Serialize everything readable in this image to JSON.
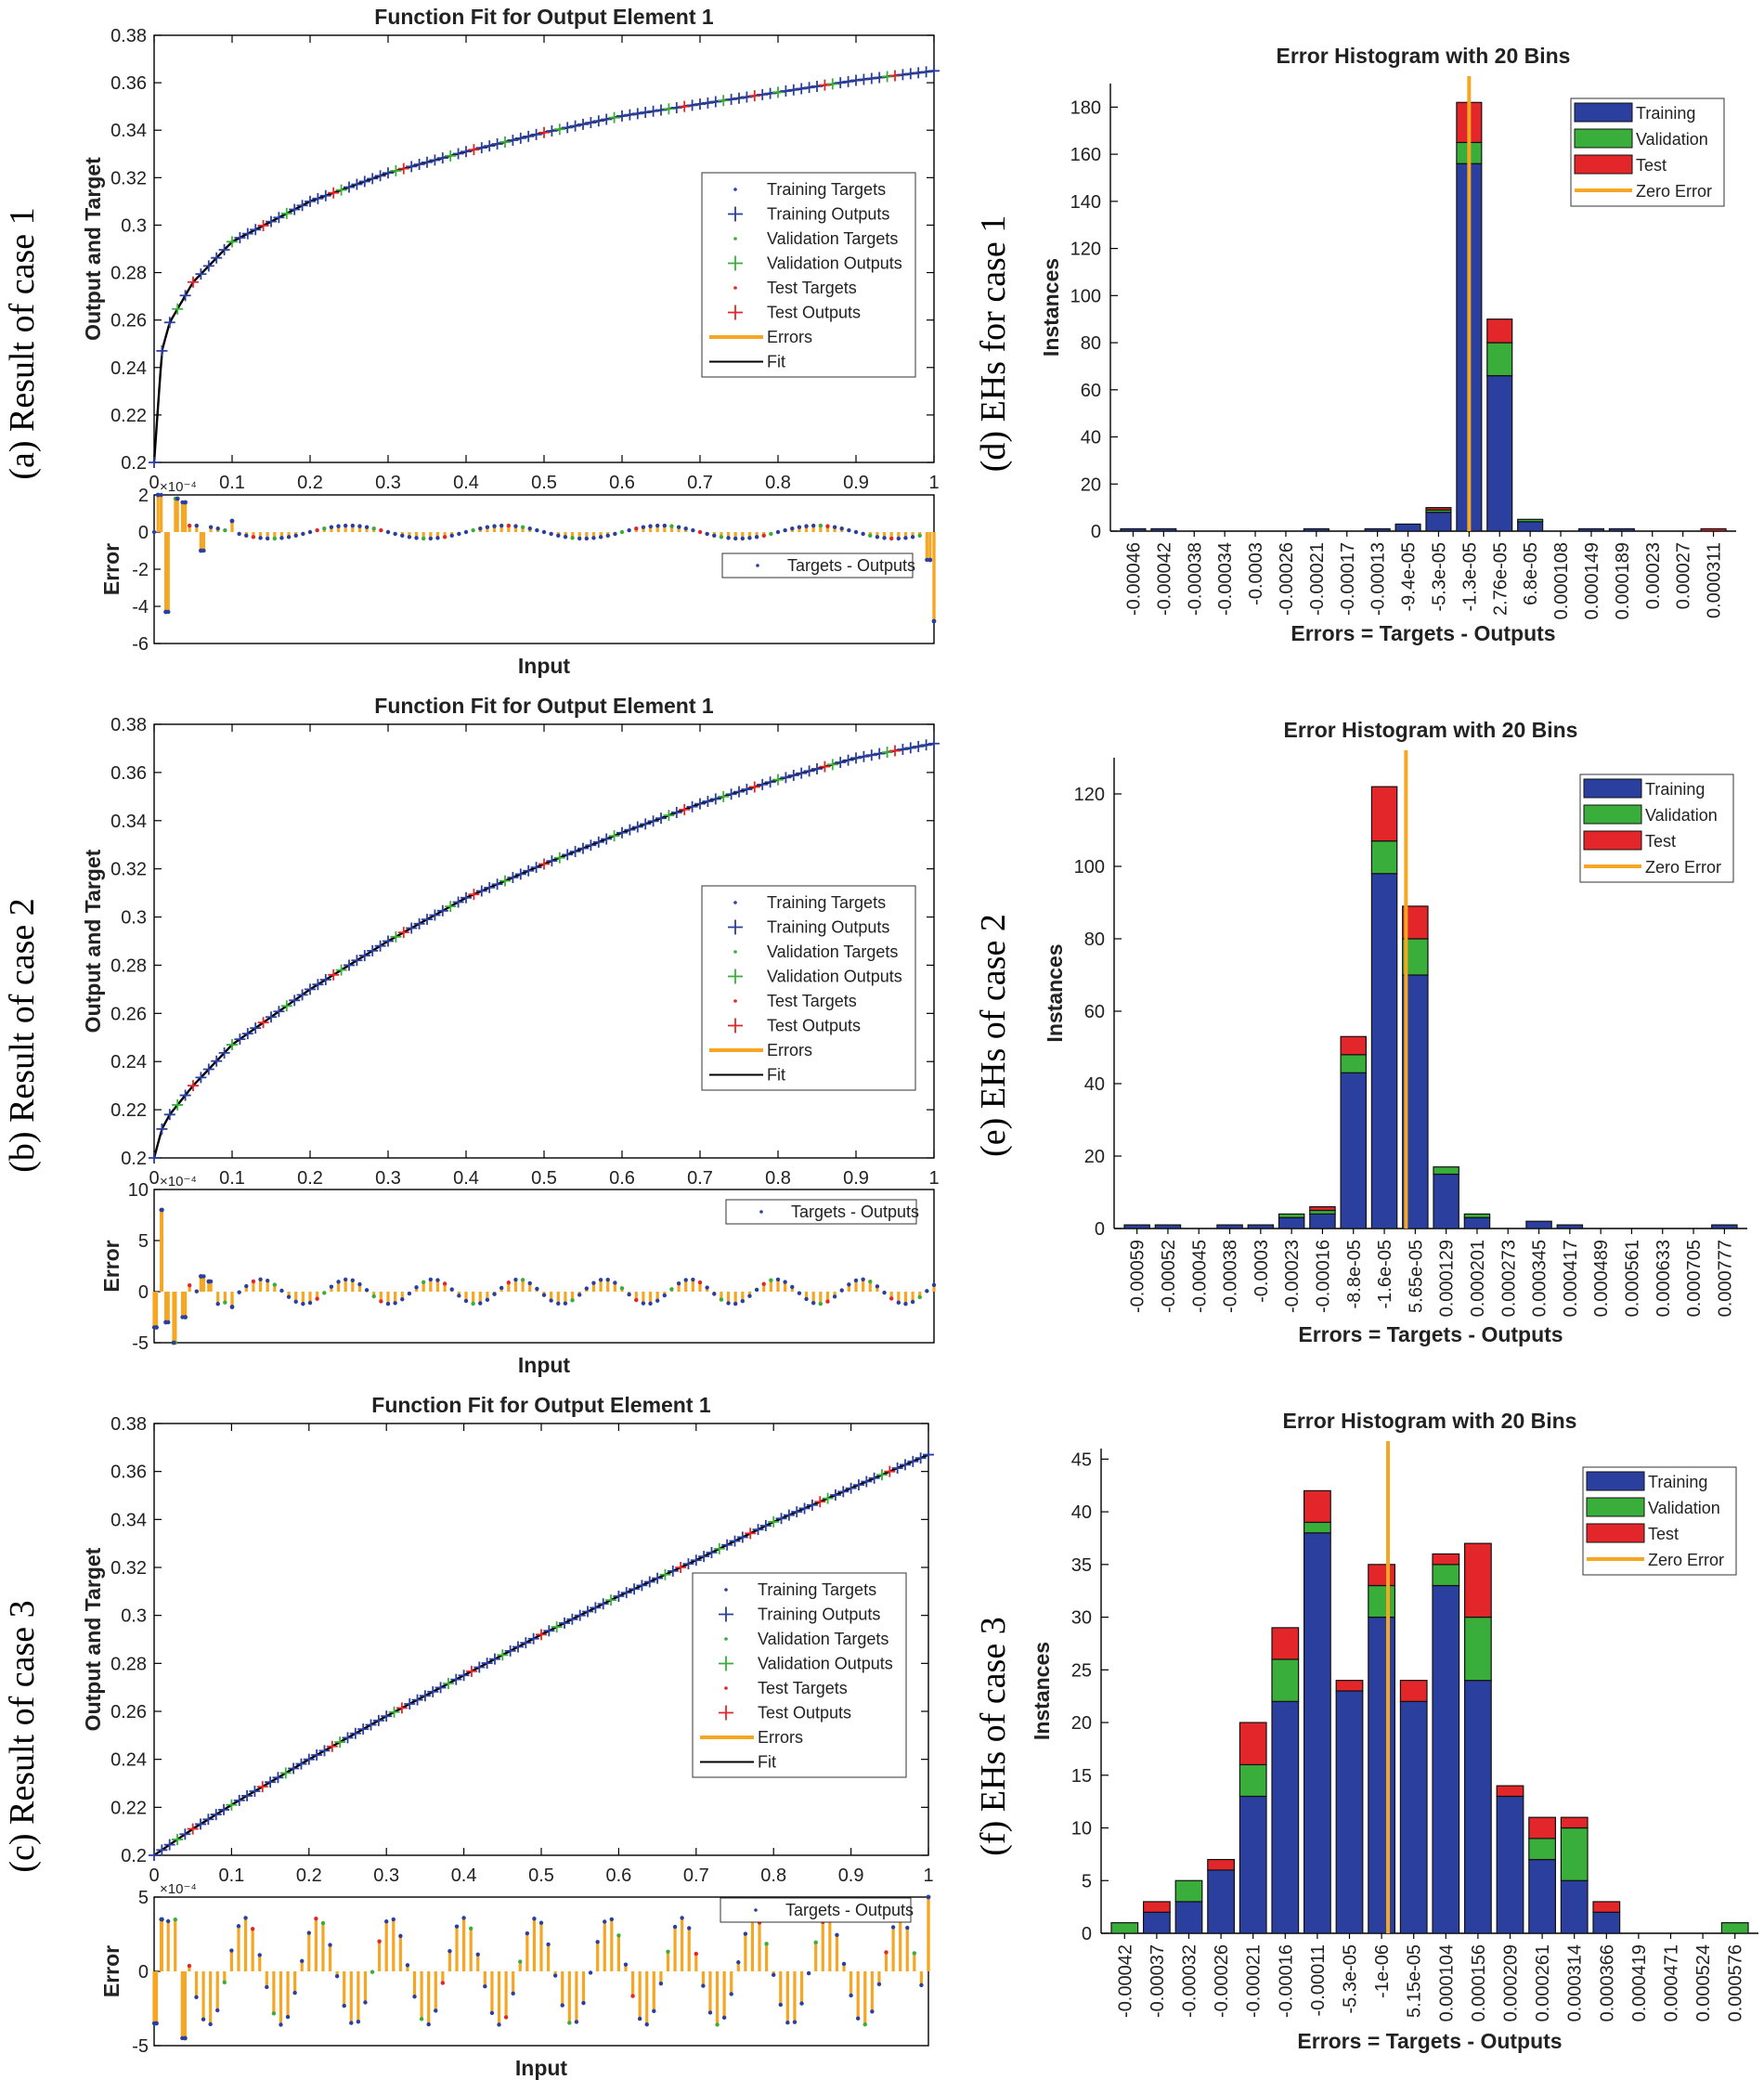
{
  "colors": {
    "training": "#2b3f9e",
    "validation": "#3aae3a",
    "test": "#e3262a",
    "zero_error": "#f5a623",
    "errors": "#f5a623",
    "fit": "#000000"
  },
  "fit_legend": [
    "Training Targets",
    "Training Outputs",
    "Validation Targets",
    "Validation Outputs",
    "Test Targets",
    "Test Outputs",
    "Errors",
    "Fit"
  ],
  "error_legend": "Targets - Outputs",
  "hist_legend": [
    "Training",
    "Validation",
    "Test",
    "Zero Error"
  ],
  "chart_data": [
    {
      "type": "line",
      "caption": "(a) Result of case 1",
      "title": "Function Fit for Output Element 1",
      "xlabel": "Input",
      "ylabel": "Output and Target",
      "ylim": [
        0.2,
        0.38
      ],
      "xlim": [
        0,
        1
      ],
      "yticks": [
        "0.2",
        "0.22",
        "0.24",
        "0.26",
        "0.28",
        "0.3",
        "0.32",
        "0.34",
        "0.36",
        "0.38"
      ],
      "xticks": [
        "0",
        "0.1",
        "0.2",
        "0.3",
        "0.4",
        "0.5",
        "0.6",
        "0.7",
        "0.8",
        "0.9",
        "1"
      ],
      "fit_curve": {
        "x": [
          0,
          0.01,
          0.02,
          0.05,
          0.1,
          0.2,
          0.3,
          0.4,
          0.5,
          0.6,
          0.7,
          0.8,
          0.9,
          1.0
        ],
        "y": [
          0.2,
          0.247,
          0.259,
          0.276,
          0.293,
          0.31,
          0.322,
          0.331,
          0.339,
          0.346,
          0.351,
          0.356,
          0.361,
          0.365
        ]
      },
      "error_plot": {
        "ylabel": "Error",
        "exponent": "×10⁻⁴",
        "ylim": [
          -6,
          2
        ],
        "yticks": [
          "-6",
          "-4",
          "-2",
          "0",
          "2"
        ],
        "errors_pattern": "spike -4.3 near x=0.02, +2 near 0.01-0.04, small oscillations, -4.8 at x=1",
        "spikes": [
          [
            0.005,
            2.0
          ],
          [
            0.015,
            -4.3
          ],
          [
            0.03,
            1.8
          ],
          [
            0.04,
            1.6
          ],
          [
            0.06,
            -1.0
          ],
          [
            0.1,
            0.6
          ],
          [
            0.995,
            -1.5
          ],
          [
            1.0,
            -4.8
          ]
        ]
      }
    },
    {
      "type": "bar",
      "caption": "(d) EHs for case 1",
      "title": "Error Histogram with 20 Bins",
      "xlabel": "Errors = Targets - Outputs",
      "ylabel": "Instances",
      "ylim": [
        0,
        190
      ],
      "yticks": [
        "0",
        "20",
        "40",
        "60",
        "80",
        "100",
        "120",
        "140",
        "160",
        "180"
      ],
      "categories": [
        "-0.00046",
        "-0.00042",
        "-0.00038",
        "-0.00034",
        "-0.0003",
        "-0.00026",
        "-0.00021",
        "-0.00017",
        "-0.00013",
        "-9.4e-05",
        "-5.3e-05",
        "-1.3e-05",
        "2.76e-05",
        "6.8e-05",
        "0.000108",
        "0.000149",
        "0.000189",
        "0.00023",
        "0.00027",
        "0.000311"
      ],
      "series": [
        {
          "name": "Training",
          "values": [
            1,
            1,
            0,
            0,
            0,
            0,
            1,
            0,
            1,
            3,
            8,
            156,
            66,
            4,
            0,
            1,
            1,
            0,
            0,
            0
          ]
        },
        {
          "name": "Validation",
          "values": [
            0,
            0,
            0,
            0,
            0,
            0,
            0,
            0,
            0,
            0,
            1,
            9,
            14,
            1,
            0,
            0,
            0,
            0,
            0,
            0
          ]
        },
        {
          "name": "Test",
          "values": [
            0,
            0,
            0,
            0,
            0,
            0,
            0,
            0,
            0,
            0,
            1,
            17,
            10,
            0,
            0,
            0,
            0,
            0,
            0,
            1
          ]
        }
      ],
      "zero_error_bin": 11.0
    },
    {
      "type": "line",
      "caption": "(b) Result of case 2",
      "title": "Function Fit for Output Element 1",
      "xlabel": "Input",
      "ylabel": "Output and Target",
      "ylim": [
        0.2,
        0.38
      ],
      "xlim": [
        0,
        1
      ],
      "yticks": [
        "0.2",
        "0.22",
        "0.24",
        "0.26",
        "0.28",
        "0.3",
        "0.32",
        "0.34",
        "0.36",
        "0.38"
      ],
      "xticks": [
        "0",
        "0.1",
        "0.2",
        "0.3",
        "0.4",
        "0.5",
        "0.6",
        "0.7",
        "0.8",
        "0.9",
        "1"
      ],
      "fit_curve": {
        "x": [
          0,
          0.01,
          0.02,
          0.05,
          0.1,
          0.2,
          0.3,
          0.4,
          0.5,
          0.6,
          0.7,
          0.8,
          0.9,
          1.0
        ],
        "y": [
          0.2,
          0.212,
          0.218,
          0.23,
          0.247,
          0.27,
          0.29,
          0.308,
          0.322,
          0.335,
          0.347,
          0.357,
          0.366,
          0.372
        ]
      },
      "error_plot": {
        "ylabel": "Error",
        "exponent": "×10⁻⁴",
        "ylim": [
          -5,
          10
        ],
        "yticks": [
          "-5",
          "0",
          "5",
          "10"
        ],
        "spikes": [
          [
            0.003,
            -3.5
          ],
          [
            0.01,
            8.0
          ],
          [
            0.015,
            -3.0
          ],
          [
            0.025,
            -5.0
          ],
          [
            0.04,
            -2.5
          ],
          [
            0.06,
            1.5
          ],
          [
            0.07,
            1.0
          ],
          [
            0.1,
            -1.5
          ]
        ]
      }
    },
    {
      "type": "bar",
      "caption": "(e) EHs of case 2",
      "title": "Error Histogram with 20 Bins",
      "xlabel": "Errors = Targets - Outputs",
      "ylabel": "Instances",
      "ylim": [
        0,
        130
      ],
      "yticks": [
        "0",
        "20",
        "40",
        "60",
        "80",
        "100",
        "120"
      ],
      "categories": [
        "-0.00059",
        "-0.00052",
        "-0.00045",
        "-0.00038",
        "-0.0003",
        "-0.00023",
        "-0.00016",
        "-8.8e-05",
        "-1.6e-05",
        "5.65e-05",
        "0.000129",
        "0.000201",
        "0.000273",
        "0.000345",
        "0.000417",
        "0.000489",
        "0.000561",
        "0.000633",
        "0.000705",
        "0.000777"
      ],
      "series": [
        {
          "name": "Training",
          "values": [
            1,
            1,
            0,
            1,
            1,
            3,
            4,
            43,
            98,
            70,
            15,
            3,
            0,
            2,
            1,
            0,
            0,
            0,
            0,
            1
          ]
        },
        {
          "name": "Validation",
          "values": [
            0,
            0,
            0,
            0,
            0,
            1,
            1,
            5,
            9,
            10,
            2,
            1,
            0,
            0,
            0,
            0,
            0,
            0,
            0,
            0
          ]
        },
        {
          "name": "Test",
          "values": [
            0,
            0,
            0,
            0,
            0,
            0,
            1,
            5,
            15,
            9,
            0,
            0,
            0,
            0,
            0,
            0,
            0,
            0,
            0,
            0
          ]
        }
      ],
      "zero_error_bin": 8.7
    },
    {
      "type": "line",
      "caption": "(c) Result of case 3",
      "title": "Function Fit for Output Element 1",
      "xlabel": "Input",
      "ylabel": "Output and Target",
      "ylim": [
        0.2,
        0.38
      ],
      "xlim": [
        0,
        1
      ],
      "yticks": [
        "0.2",
        "0.22",
        "0.24",
        "0.26",
        "0.28",
        "0.3",
        "0.32",
        "0.34",
        "0.36",
        "0.38"
      ],
      "xticks": [
        "0",
        "0.1",
        "0.2",
        "0.3",
        "0.4",
        "0.5",
        "0.6",
        "0.7",
        "0.8",
        "0.9",
        "1"
      ],
      "fit_curve": {
        "x": [
          0,
          0.05,
          0.1,
          0.2,
          0.3,
          0.4,
          0.5,
          0.6,
          0.7,
          0.8,
          0.9,
          1.0
        ],
        "y": [
          0.2,
          0.211,
          0.221,
          0.24,
          0.258,
          0.275,
          0.292,
          0.308,
          0.323,
          0.339,
          0.353,
          0.367
        ]
      },
      "error_plot": {
        "ylabel": "Error",
        "exponent": "×10⁻⁴",
        "ylim": [
          -5,
          5
        ],
        "yticks": [
          "-5",
          "0",
          "5"
        ],
        "spikes": [
          [
            0.003,
            -3.5
          ],
          [
            0.01,
            3.5
          ],
          [
            0.04,
            -4.5
          ],
          [
            1.0,
            5.0
          ]
        ]
      }
    },
    {
      "type": "bar",
      "caption": "(f) EHs of case 3",
      "title": "Error Histogram with 20 Bins",
      "xlabel": "Errors = Targets - Outputs",
      "ylabel": "Instances",
      "ylim": [
        0,
        46
      ],
      "yticks": [
        "0",
        "5",
        "10",
        "15",
        "20",
        "25",
        "30",
        "35",
        "40",
        "45"
      ],
      "categories": [
        "-0.00042",
        "-0.00037",
        "-0.00032",
        "-0.00026",
        "-0.00021",
        "-0.00016",
        "-0.00011",
        "-5.3e-05",
        "-1e-06",
        "5.15e-05",
        "0.000104",
        "0.000156",
        "0.000209",
        "0.000261",
        "0.000314",
        "0.000366",
        "0.000419",
        "0.000471",
        "0.000524",
        "0.000576"
      ],
      "series": [
        {
          "name": "Training",
          "values": [
            0,
            2,
            3,
            6,
            13,
            22,
            38,
            23,
            30,
            22,
            33,
            24,
            13,
            7,
            5,
            2,
            0,
            0,
            0,
            0
          ]
        },
        {
          "name": "Validation",
          "values": [
            1,
            0,
            2,
            0,
            3,
            4,
            1,
            0,
            3,
            0,
            2,
            6,
            0,
            2,
            5,
            0,
            0,
            0,
            0,
            1
          ]
        },
        {
          "name": "Test",
          "values": [
            0,
            1,
            0,
            1,
            4,
            3,
            3,
            1,
            2,
            2,
            1,
            7,
            1,
            2,
            1,
            1,
            0,
            0,
            0,
            0
          ]
        }
      ],
      "zero_error_bin": 8.2
    }
  ]
}
